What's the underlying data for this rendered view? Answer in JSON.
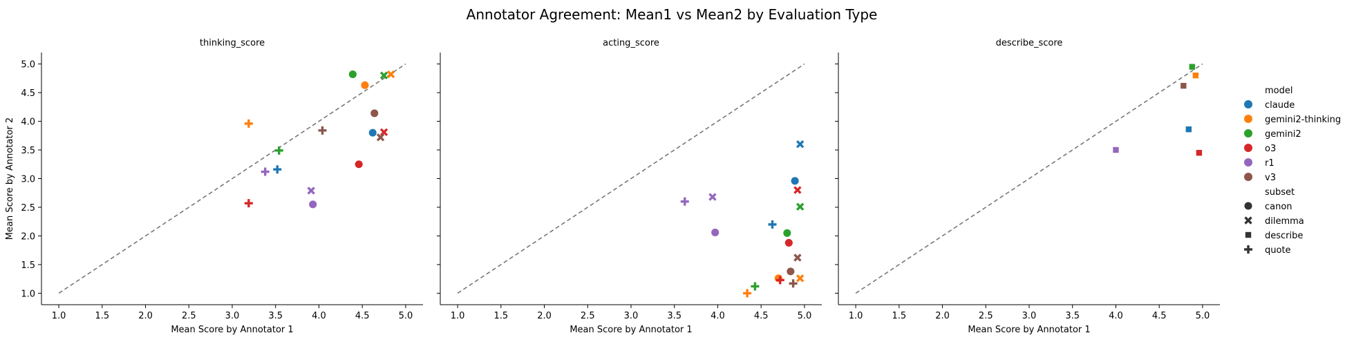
{
  "figure": {
    "title": "Annotator Agreement: Mean1 vs Mean2 by Evaluation Type"
  },
  "legend": {
    "hue_title": "model",
    "style_title": "subset",
    "models": [
      {
        "name": "claude",
        "color": "#1f77b4"
      },
      {
        "name": "gemini2-thinking",
        "color": "#ff7f0e"
      },
      {
        "name": "gemini2",
        "color": "#2ca02c"
      },
      {
        "name": "o3",
        "color": "#d62728"
      },
      {
        "name": "r1",
        "color": "#9467bd"
      },
      {
        "name": "v3",
        "color": "#8c564b"
      }
    ],
    "subsets": [
      {
        "name": "canon",
        "marker": "circle"
      },
      {
        "name": "dilemma",
        "marker": "x"
      },
      {
        "name": "describe",
        "marker": "square"
      },
      {
        "name": "quote",
        "marker": "plus"
      }
    ]
  },
  "chart_data": [
    {
      "type": "scatter",
      "title": "thinking_score",
      "xlabel": "Mean Score by Annotator 1",
      "ylabel": "Mean Score by Annotator 2",
      "xlim": [
        0.8,
        5.2
      ],
      "ylim": [
        0.8,
        5.2
      ],
      "xticks": [
        "1.0",
        "1.5",
        "2.0",
        "2.5",
        "3.0",
        "3.5",
        "4.0",
        "4.5",
        "5.0"
      ],
      "yticks": [
        "1.0",
        "1.5",
        "2.0",
        "2.5",
        "3.0",
        "3.5",
        "4.0",
        "4.5",
        "5.0"
      ],
      "reference_line": {
        "from": [
          1,
          1
        ],
        "to": [
          5,
          5
        ],
        "style": "dashed"
      },
      "points": [
        {
          "model": "claude",
          "subset": "canon",
          "x": 4.62,
          "y": 3.8
        },
        {
          "model": "claude",
          "subset": "quote",
          "x": 3.52,
          "y": 3.16
        },
        {
          "model": "gemini2-thinking",
          "subset": "canon",
          "x": 4.53,
          "y": 4.63
        },
        {
          "model": "gemini2-thinking",
          "subset": "dilemma",
          "x": 4.83,
          "y": 4.82
        },
        {
          "model": "gemini2-thinking",
          "subset": "quote",
          "x": 3.19,
          "y": 3.96
        },
        {
          "model": "gemini2",
          "subset": "canon",
          "x": 4.39,
          "y": 4.82
        },
        {
          "model": "gemini2",
          "subset": "dilemma",
          "x": 4.75,
          "y": 4.8
        },
        {
          "model": "gemini2",
          "subset": "quote",
          "x": 3.54,
          "y": 3.49
        },
        {
          "model": "o3",
          "subset": "canon",
          "x": 4.46,
          "y": 3.25
        },
        {
          "model": "o3",
          "subset": "dilemma",
          "x": 4.75,
          "y": 3.81
        },
        {
          "model": "o3",
          "subset": "quote",
          "x": 3.19,
          "y": 2.57
        },
        {
          "model": "r1",
          "subset": "canon",
          "x": 3.93,
          "y": 2.55
        },
        {
          "model": "r1",
          "subset": "dilemma",
          "x": 3.91,
          "y": 2.79
        },
        {
          "model": "r1",
          "subset": "quote",
          "x": 3.38,
          "y": 3.12
        },
        {
          "model": "v3",
          "subset": "canon",
          "x": 4.64,
          "y": 4.14
        },
        {
          "model": "v3",
          "subset": "dilemma",
          "x": 4.71,
          "y": 3.72
        },
        {
          "model": "v3",
          "subset": "quote",
          "x": 4.04,
          "y": 3.84
        }
      ]
    },
    {
      "type": "scatter",
      "title": "acting_score",
      "xlabel": "Mean Score by Annotator 1",
      "ylabel": "",
      "xlim": [
        0.8,
        5.2
      ],
      "ylim": [
        0.8,
        5.2
      ],
      "xticks": [
        "1.0",
        "1.5",
        "2.0",
        "2.5",
        "3.0",
        "3.5",
        "4.0",
        "4.5",
        "5.0"
      ],
      "yticks": [],
      "reference_line": {
        "from": [
          1,
          1
        ],
        "to": [
          5,
          5
        ],
        "style": "dashed"
      },
      "points": [
        {
          "model": "claude",
          "subset": "canon",
          "x": 4.89,
          "y": 2.96
        },
        {
          "model": "claude",
          "subset": "dilemma",
          "x": 4.95,
          "y": 3.6
        },
        {
          "model": "claude",
          "subset": "quote",
          "x": 4.63,
          "y": 2.2
        },
        {
          "model": "gemini2-thinking",
          "subset": "canon",
          "x": 4.7,
          "y": 1.26
        },
        {
          "model": "gemini2-thinking",
          "subset": "dilemma",
          "x": 4.95,
          "y": 1.26
        },
        {
          "model": "gemini2-thinking",
          "subset": "quote",
          "x": 4.34,
          "y": 1.0
        },
        {
          "model": "gemini2",
          "subset": "canon",
          "x": 4.8,
          "y": 2.05
        },
        {
          "model": "gemini2",
          "subset": "dilemma",
          "x": 4.95,
          "y": 2.51
        },
        {
          "model": "gemini2",
          "subset": "quote",
          "x": 4.43,
          "y": 1.12
        },
        {
          "model": "o3",
          "subset": "canon",
          "x": 4.82,
          "y": 1.88
        },
        {
          "model": "o3",
          "subset": "dilemma",
          "x": 4.92,
          "y": 2.8
        },
        {
          "model": "o3",
          "subset": "quote",
          "x": 4.72,
          "y": 1.23
        },
        {
          "model": "r1",
          "subset": "canon",
          "x": 3.97,
          "y": 2.06
        },
        {
          "model": "r1",
          "subset": "dilemma",
          "x": 3.94,
          "y": 2.68
        },
        {
          "model": "r1",
          "subset": "quote",
          "x": 3.62,
          "y": 2.6
        },
        {
          "model": "v3",
          "subset": "canon",
          "x": 4.84,
          "y": 1.38
        },
        {
          "model": "v3",
          "subset": "dilemma",
          "x": 4.92,
          "y": 1.62
        },
        {
          "model": "v3",
          "subset": "quote",
          "x": 4.87,
          "y": 1.17
        }
      ]
    },
    {
      "type": "scatter",
      "title": "describe_score",
      "xlabel": "Mean Score by Annotator 1",
      "ylabel": "",
      "xlim": [
        0.8,
        5.2
      ],
      "ylim": [
        0.8,
        5.2
      ],
      "xticks": [
        "1.0",
        "1.5",
        "2.0",
        "2.5",
        "3.0",
        "3.5",
        "4.0",
        "4.5",
        "5.0"
      ],
      "yticks": [],
      "reference_line": {
        "from": [
          1,
          1
        ],
        "to": [
          5,
          5
        ],
        "style": "dashed"
      },
      "points": [
        {
          "model": "claude",
          "subset": "describe",
          "x": 4.84,
          "y": 3.86
        },
        {
          "model": "gemini2-thinking",
          "subset": "describe",
          "x": 4.92,
          "y": 4.8
        },
        {
          "model": "gemini2",
          "subset": "describe",
          "x": 4.88,
          "y": 4.95
        },
        {
          "model": "o3",
          "subset": "describe",
          "x": 4.96,
          "y": 3.45
        },
        {
          "model": "r1",
          "subset": "describe",
          "x": 4.0,
          "y": 3.5
        },
        {
          "model": "v3",
          "subset": "describe",
          "x": 4.78,
          "y": 4.62
        }
      ]
    }
  ]
}
